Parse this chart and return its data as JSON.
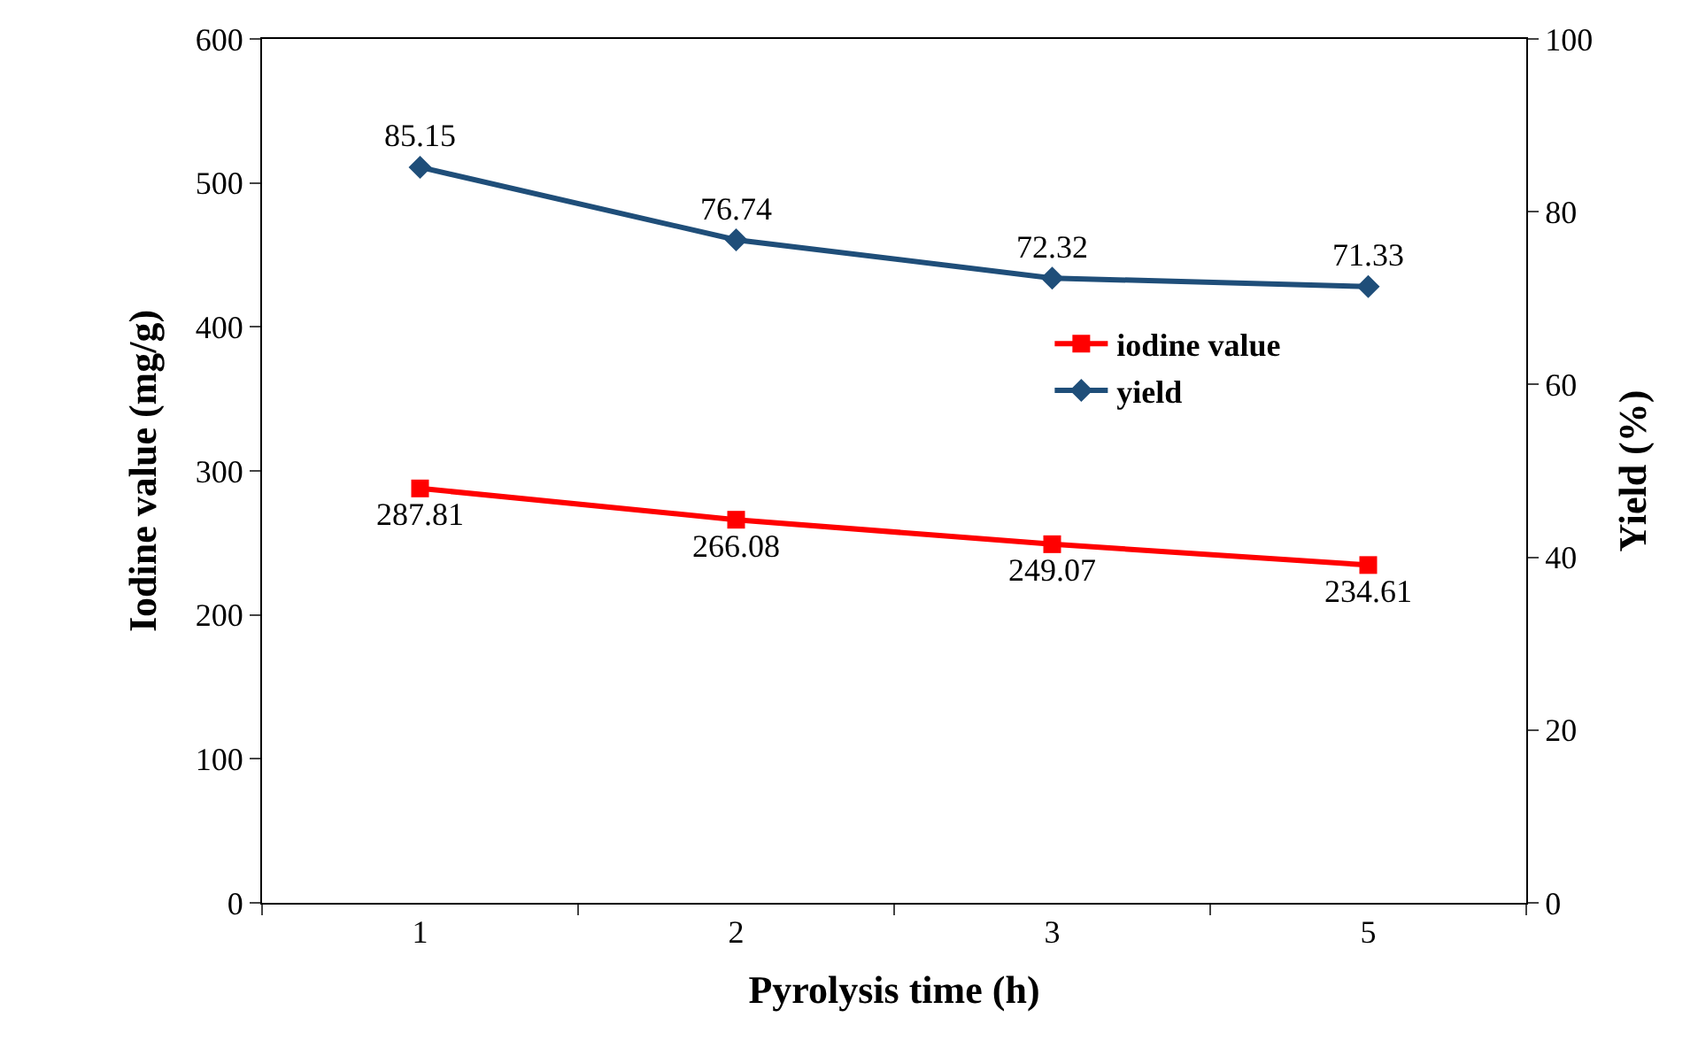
{
  "chart_data": {
    "type": "line",
    "xlabel": "Pyrolysis time (h)",
    "ylabel": "Iodine value (mg/g)",
    "y2label": "Yield (%)",
    "categories": [
      "1",
      "2",
      "3",
      "5"
    ],
    "series": [
      {
        "name": "iodine value",
        "color": "#ff0000",
        "marker": "square",
        "values": [
          287.81,
          266.08,
          249.07,
          234.61
        ]
      },
      {
        "name": "yield",
        "color": "#1f4e79",
        "marker": "diamond",
        "axis": "y2",
        "values": [
          85.15,
          76.74,
          72.32,
          71.33
        ]
      }
    ],
    "ylim": [
      0,
      600
    ],
    "yticks": [
      0,
      100,
      200,
      300,
      400,
      500,
      600
    ],
    "y2lim": [
      0,
      100
    ],
    "y2ticks": [
      0,
      20,
      40,
      60,
      80,
      100
    ],
    "data_labels": true,
    "legend": "right",
    "line_style": "solid"
  }
}
